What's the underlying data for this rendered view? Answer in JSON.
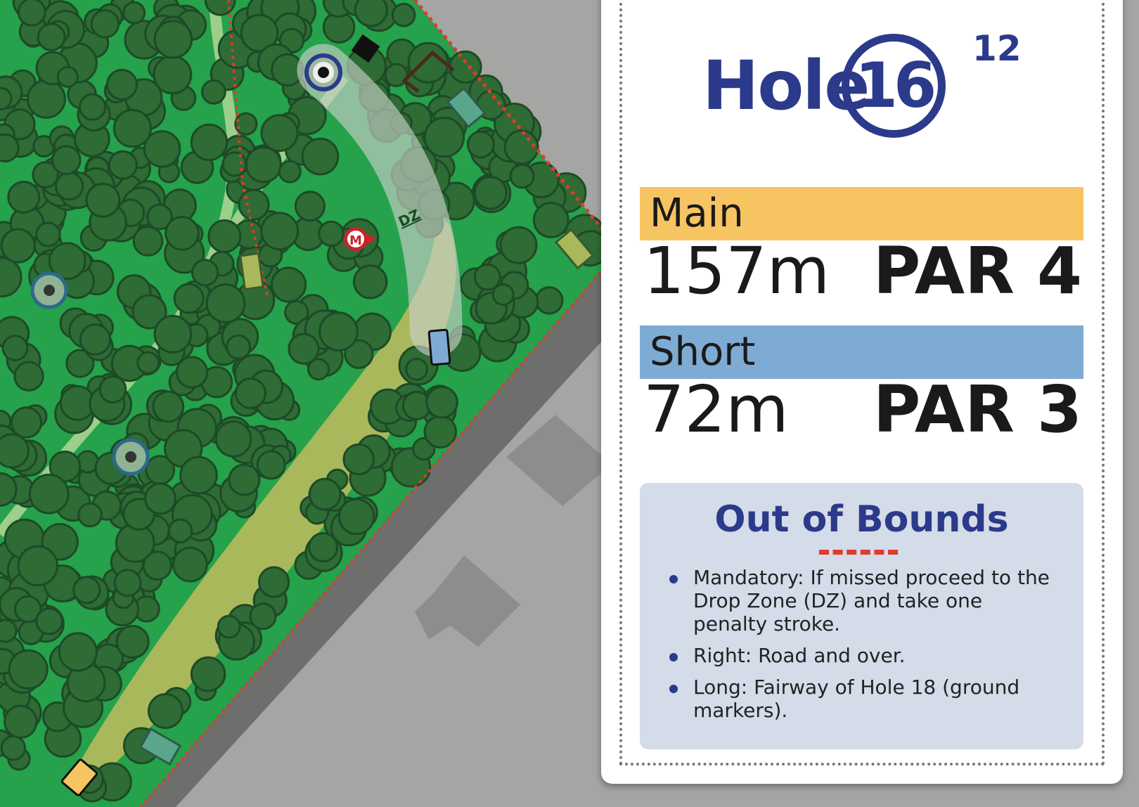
{
  "header": {
    "label": "Hole",
    "hole_number": "16",
    "alt_number": "12"
  },
  "tees": [
    {
      "name": "Main",
      "distance": "157m",
      "par": "PAR 4",
      "color": "#f7c462"
    },
    {
      "name": "Short",
      "distance": "72m",
      "par": "PAR 3",
      "color": "#7eabd3"
    }
  ],
  "out_of_bounds": {
    "title": "Out of Bounds",
    "rules": [
      "Mandatory: If missed proceed to the Drop Zone (DZ) and take one penalty stroke.",
      "Right: Road and over.",
      "Long: Fairway of Hole 18 (ground markers)."
    ]
  },
  "map": {
    "drop_zone_label": "DZ",
    "mandatory_label": "M",
    "colors": {
      "grass": "#25a24b",
      "tree": "#2e6b35",
      "road": "#6e6e6c",
      "ground": "#a5a5a3",
      "ob_line": "#e03b2b",
      "basket": "#2b3a8a"
    },
    "icons": [
      "basket-icon",
      "mandatory-icon",
      "tee-pad-icon",
      "drop-zone-icon"
    ]
  }
}
